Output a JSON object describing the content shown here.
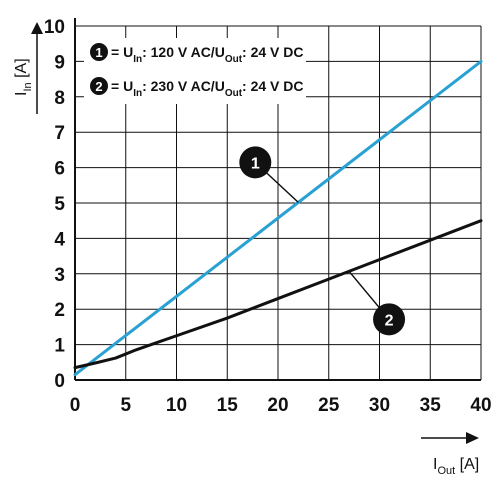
{
  "chart_data": {
    "type": "line",
    "xlabel": {
      "main": "I",
      "sub": "Out",
      "unit": " [A]"
    },
    "ylabel": {
      "main": "I",
      "sub": "In",
      "unit": " [A]"
    },
    "xlim": [
      0,
      40
    ],
    "ylim": [
      0,
      10
    ],
    "xticks": [
      "0",
      "5",
      "10",
      "15",
      "20",
      "25",
      "30",
      "35",
      "40"
    ],
    "yticks": [
      "0",
      "1",
      "2",
      "3",
      "4",
      "5",
      "6",
      "7",
      "8",
      "9",
      "10"
    ],
    "grid": true,
    "legend_position": "top-left",
    "series": [
      {
        "id": "1",
        "color": "#2aa1d3",
        "legend": {
          "p1": "= U",
          "s1": "In",
          "p2": ": 120 V AC/U",
          "s2": "Out",
          "p3": ": 24 V DC"
        },
        "x": [
          0,
          40
        ],
        "y": [
          0.15,
          9.0
        ]
      },
      {
        "id": "2",
        "color": "#111111",
        "legend": {
          "p1": "= U",
          "s1": "In",
          "p2": ": 230 V AC/U",
          "s2": "Out",
          "p3": ": 24 V DC"
        },
        "x": [
          0,
          2,
          4,
          6,
          8,
          10,
          15,
          20,
          25,
          30,
          35,
          40
        ],
        "y": [
          0.35,
          0.48,
          0.62,
          0.85,
          1.05,
          1.25,
          1.75,
          2.3,
          2.85,
          3.4,
          3.95,
          4.5
        ]
      }
    ],
    "callouts": [
      {
        "label": "1",
        "series": "1",
        "at_x": 22
      },
      {
        "label": "2",
        "series": "2",
        "at_x": 27
      }
    ]
  }
}
